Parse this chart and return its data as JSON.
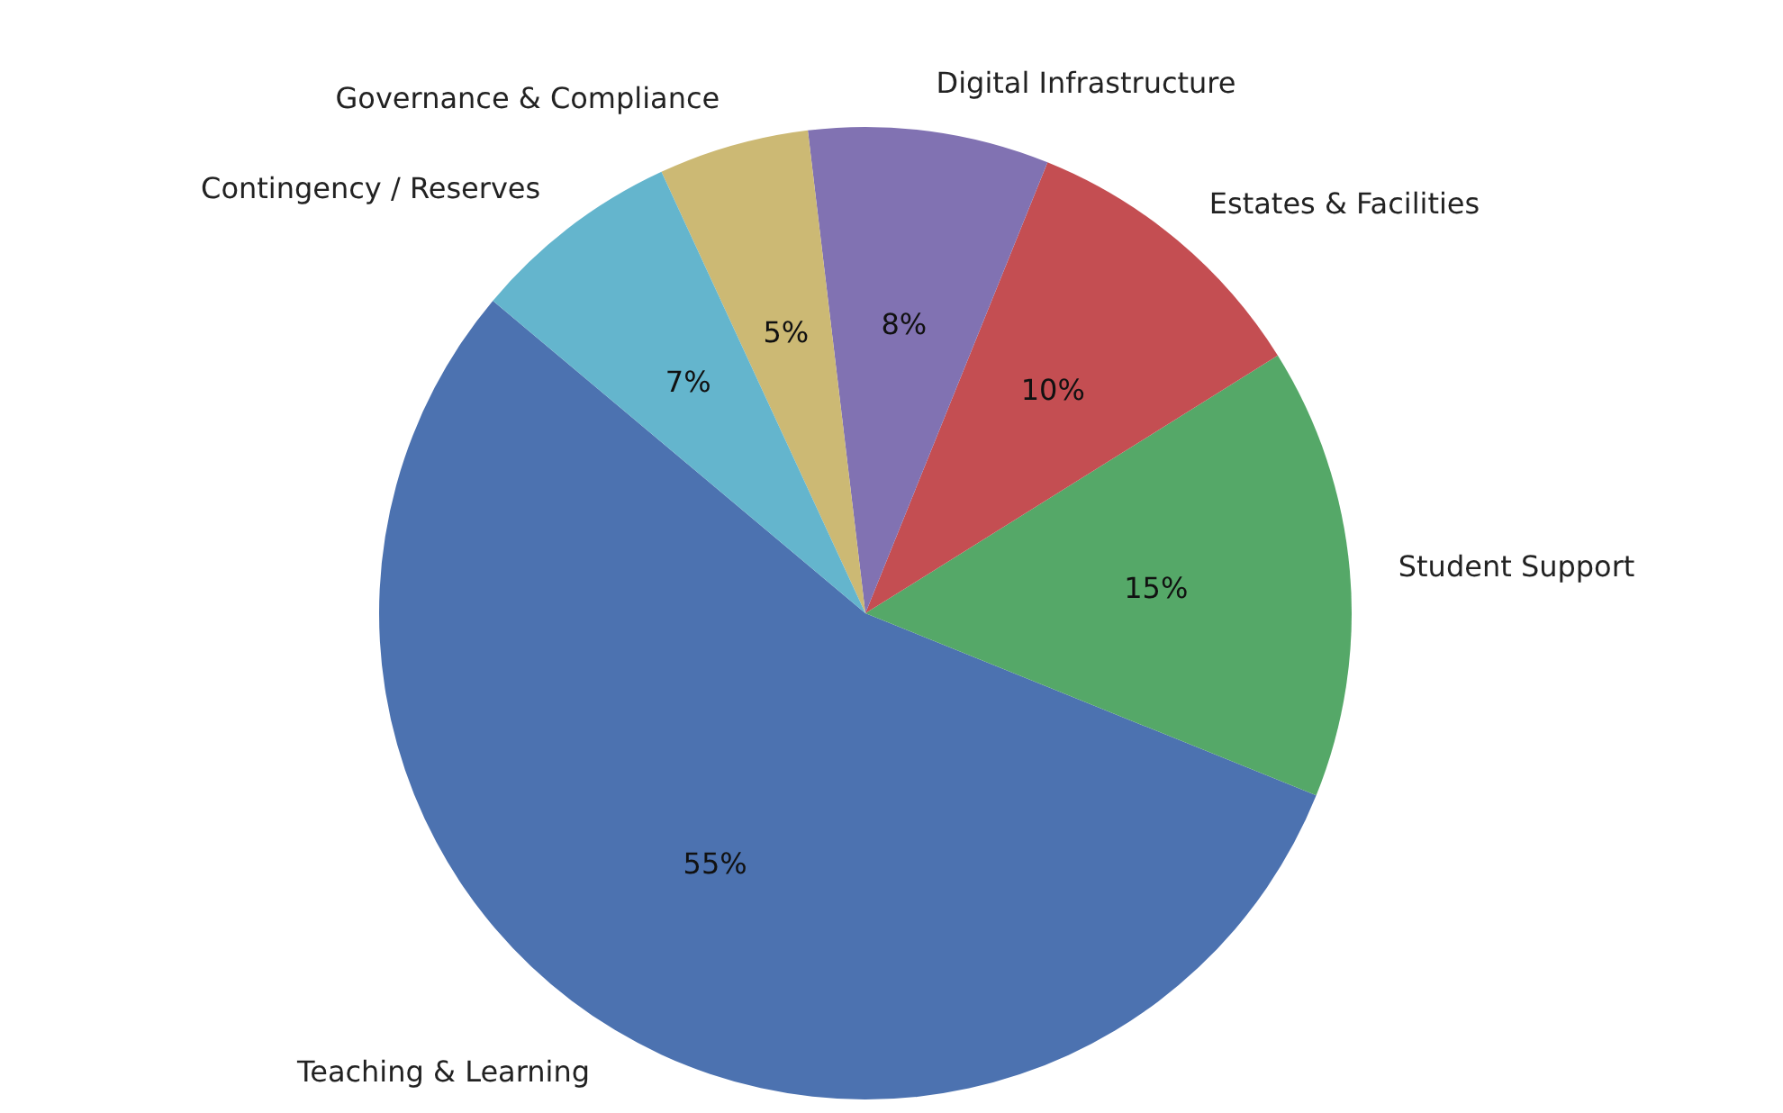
{
  "chart_data": {
    "type": "pie",
    "categories": [
      "Teaching & Learning",
      "Student Support",
      "Estates & Facilities",
      "Digital Infrastructure",
      "Governance & Compliance",
      "Contingency / Reserves"
    ],
    "values": [
      55,
      15,
      10,
      8,
      5,
      7
    ],
    "value_labels": [
      "55%",
      "15%",
      "10%",
      "8%",
      "5%",
      "7%"
    ],
    "colors": [
      "#4c72b0",
      "#55a868",
      "#c44e52",
      "#8172b2",
      "#ccb974",
      "#64b5cd"
    ]
  }
}
